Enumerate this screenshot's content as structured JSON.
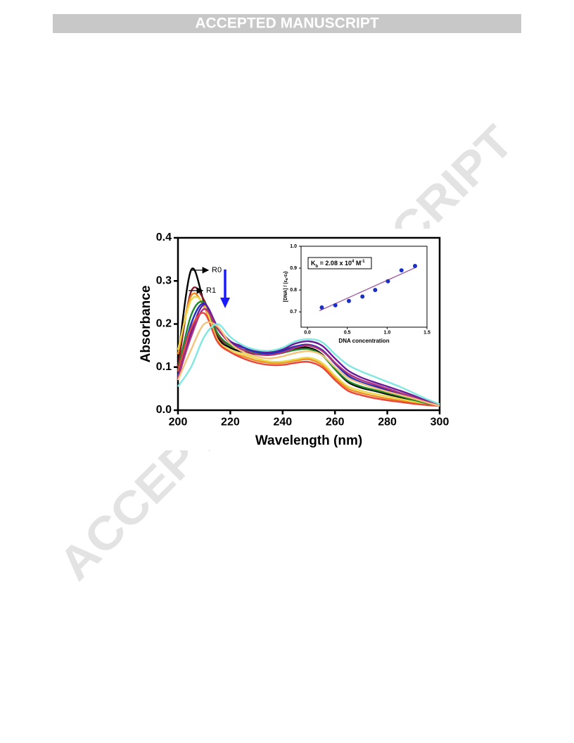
{
  "header": {
    "title": "ACCEPTED MANUSCRIPT"
  },
  "watermark": "ACCEPTED MANUSCRIPT",
  "chart_data": [
    {
      "type": "line",
      "xlabel": "Wavelength (nm)",
      "ylabel": "Absorbance",
      "annotations": [
        "R0",
        "R1"
      ],
      "x": [
        200,
        205,
        210,
        215,
        220,
        225,
        230,
        235,
        240,
        245,
        250,
        255,
        260,
        265,
        270,
        275,
        280,
        285,
        290,
        295,
        300
      ],
      "series": [
        {
          "color": "#000000",
          "values": [
            0.12,
            0.325,
            0.25,
            0.17,
            0.145,
            0.135,
            0.13,
            0.13,
            0.135,
            0.143,
            0.145,
            0.13,
            0.095,
            0.065,
            0.052,
            0.045,
            0.037,
            0.03,
            0.022,
            0.015,
            0.01
          ]
        },
        {
          "color": "#8b1a2b",
          "values": [
            0.1,
            0.275,
            0.255,
            0.175,
            0.15,
            0.14,
            0.135,
            0.135,
            0.14,
            0.148,
            0.152,
            0.14,
            0.11,
            0.08,
            0.065,
            0.055,
            0.047,
            0.038,
            0.028,
            0.018,
            0.01
          ]
        },
        {
          "color": "#f28c1e",
          "values": [
            0.13,
            0.265,
            0.24,
            0.16,
            0.135,
            0.125,
            0.115,
            0.11,
            0.11,
            0.115,
            0.118,
            0.105,
            0.075,
            0.05,
            0.04,
            0.033,
            0.027,
            0.022,
            0.018,
            0.013,
            0.01
          ]
        },
        {
          "color": "#e8d84a",
          "values": [
            0.14,
            0.255,
            0.245,
            0.165,
            0.14,
            0.13,
            0.12,
            0.113,
            0.113,
            0.118,
            0.122,
            0.11,
            0.08,
            0.055,
            0.045,
            0.038,
            0.032,
            0.026,
            0.02,
            0.015,
            0.01
          ]
        },
        {
          "color": "#1c8a2a",
          "values": [
            0.09,
            0.22,
            0.25,
            0.18,
            0.15,
            0.14,
            0.132,
            0.128,
            0.133,
            0.14,
            0.142,
            0.128,
            0.095,
            0.068,
            0.055,
            0.047,
            0.04,
            0.032,
            0.024,
            0.016,
            0.01
          ]
        },
        {
          "color": "#1f2fbf",
          "values": [
            0.08,
            0.2,
            0.248,
            0.19,
            0.158,
            0.145,
            0.135,
            0.132,
            0.138,
            0.148,
            0.152,
            0.14,
            0.108,
            0.08,
            0.065,
            0.056,
            0.048,
            0.039,
            0.029,
            0.019,
            0.01
          ]
        },
        {
          "color": "#6a1b9a",
          "values": [
            0.07,
            0.18,
            0.245,
            0.195,
            0.16,
            0.148,
            0.138,
            0.136,
            0.142,
            0.155,
            0.16,
            0.15,
            0.12,
            0.092,
            0.076,
            0.065,
            0.055,
            0.045,
            0.034,
            0.022,
            0.012
          ]
        },
        {
          "color": "#b0307a",
          "values": [
            0.075,
            0.17,
            0.235,
            0.19,
            0.155,
            0.14,
            0.13,
            0.128,
            0.134,
            0.145,
            0.15,
            0.138,
            0.11,
            0.085,
            0.07,
            0.06,
            0.05,
            0.04,
            0.03,
            0.02,
            0.012
          ]
        },
        {
          "color": "#e8453c",
          "values": [
            0.09,
            0.19,
            0.225,
            0.16,
            0.135,
            0.12,
            0.11,
            0.105,
            0.105,
            0.11,
            0.112,
            0.1,
            0.07,
            0.045,
            0.035,
            0.028,
            0.023,
            0.019,
            0.015,
            0.012,
            0.01
          ]
        },
        {
          "color": "#f5c27a",
          "values": [
            0.07,
            0.14,
            0.2,
            0.195,
            0.155,
            0.135,
            0.125,
            0.12,
            0.125,
            0.133,
            0.137,
            0.128,
            0.1,
            0.075,
            0.062,
            0.052,
            0.043,
            0.035,
            0.027,
            0.018,
            0.01
          ]
        },
        {
          "color": "#7fe8e0",
          "values": [
            0.055,
            0.1,
            0.17,
            0.2,
            0.17,
            0.15,
            0.14,
            0.138,
            0.145,
            0.16,
            0.165,
            0.158,
            0.13,
            0.105,
            0.09,
            0.078,
            0.066,
            0.054,
            0.04,
            0.026,
            0.014
          ]
        }
      ],
      "xlim": [
        200,
        300
      ],
      "xticks": [
        200,
        220,
        240,
        260,
        280,
        300
      ],
      "ylim": [
        0,
        0.4
      ],
      "yticks": [
        {
          "value": 0,
          "label": "0.0"
        },
        0.1,
        0.2,
        0.3,
        0.4
      ]
    },
    {
      "type": "scatter",
      "xlabel": "DNA concentration",
      "ylabel": [
        "[DNA] / (ε",
        "a",
        "-ε",
        "f",
        ")"
      ],
      "annotation": [
        "K",
        "b",
        " = 2.08 x 10",
        "4",
        " M",
        "-1"
      ],
      "x": [
        0.18,
        0.35,
        0.52,
        0.69,
        0.85,
        1.01,
        1.18,
        1.35
      ],
      "values": [
        0.72,
        0.73,
        0.75,
        0.77,
        0.8,
        0.84,
        0.89,
        0.91
      ],
      "color": "#1a2fc8",
      "fit": {
        "x": [
          0.15,
          1.37
        ],
        "values": [
          0.705,
          0.905
        ],
        "color": "#9a4a9a"
      },
      "xlim": [
        -0.08,
        1.5
      ],
      "xticks": [
        {
          "value": 0,
          "label": "0.0"
        },
        0.5,
        {
          "value": 1,
          "label": "1.0"
        },
        1.5
      ],
      "ylim": [
        0.63,
        1.0
      ],
      "yticks": [
        0.7,
        0.8,
        0.9,
        {
          "value": 1,
          "label": "1.0"
        }
      ]
    }
  ]
}
